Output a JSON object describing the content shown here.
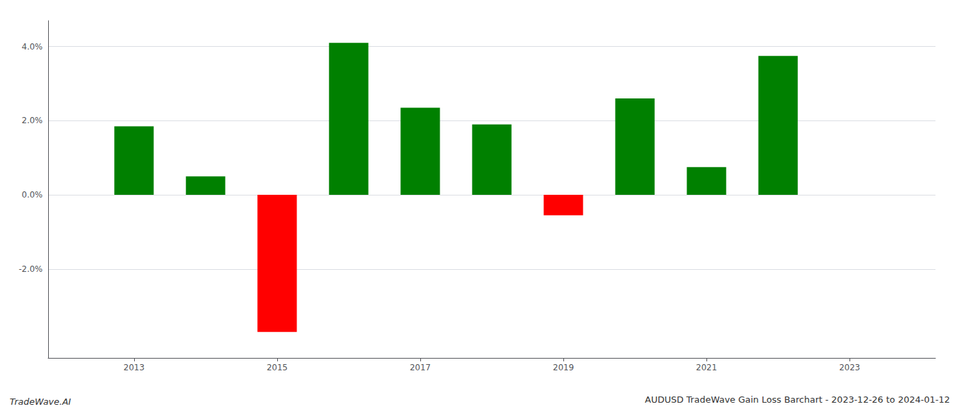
{
  "chart_data": {
    "type": "bar",
    "title": "AUDUSD TradeWave Gain Loss Barchart - 2023-12-26 to 2024-01-12",
    "annotations": [
      "TradeWave.AI"
    ],
    "x": [
      2013,
      2014,
      2015,
      2016,
      2017,
      2018,
      2019,
      2020,
      2021,
      2022
    ],
    "values": [
      0.0185,
      0.005,
      -0.037,
      0.041,
      0.0235,
      0.019,
      -0.0055,
      0.026,
      0.0075,
      0.0375
    ],
    "colors": [
      "#008000",
      "#008000",
      "#ff0000",
      "#008000",
      "#008000",
      "#008000",
      "#ff0000",
      "#008000",
      "#008000",
      "#008000"
    ],
    "xlim": [
      2011.8,
      2024.2
    ],
    "xticks": [
      2013,
      2015,
      2017,
      2019,
      2021,
      2023
    ],
    "ylim": [
      -0.044,
      0.047
    ],
    "yticks": [
      {
        "value": -0.02,
        "label": "-2.0%"
      },
      {
        "value": 0.0,
        "label": "0.0%"
      },
      {
        "value": 0.02,
        "label": "2.0%"
      },
      {
        "value": 0.04,
        "label": "4.0%"
      }
    ],
    "grid": true
  }
}
